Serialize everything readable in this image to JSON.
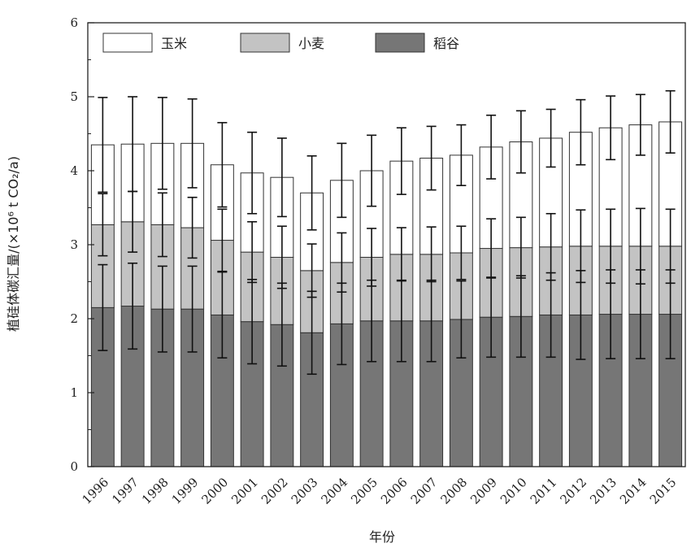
{
  "chart_data": {
    "type": "bar",
    "stacked": true,
    "categories": [
      "1996",
      "1997",
      "1998",
      "1999",
      "2000",
      "2001",
      "2002",
      "2003",
      "2004",
      "2005",
      "2006",
      "2007",
      "2008",
      "2009",
      "2010",
      "2011",
      "2012",
      "2013",
      "2014",
      "2015"
    ],
    "series": [
      {
        "name": "稻谷",
        "color": "#767676",
        "values": [
          2.15,
          2.17,
          2.13,
          2.13,
          2.05,
          1.96,
          1.92,
          1.81,
          1.93,
          1.97,
          1.97,
          1.97,
          1.99,
          2.02,
          2.03,
          2.05,
          2.05,
          2.06,
          2.06,
          2.06
        ],
        "error": [
          0.58,
          0.58,
          0.58,
          0.58,
          0.58,
          0.57,
          0.56,
          0.56,
          0.55,
          0.55,
          0.55,
          0.55,
          0.52,
          0.54,
          0.55,
          0.57,
          0.6,
          0.6,
          0.6,
          0.6
        ]
      },
      {
        "name": "小麦",
        "color": "#c3c3c3",
        "values": [
          1.12,
          1.14,
          1.14,
          1.1,
          1.01,
          0.94,
          0.91,
          0.84,
          0.83,
          0.86,
          0.9,
          0.9,
          0.9,
          0.93,
          0.93,
          0.92,
          0.93,
          0.92,
          0.92,
          0.92
        ],
        "error": [
          0.42,
          0.41,
          0.43,
          0.41,
          0.42,
          0.41,
          0.42,
          0.36,
          0.4,
          0.39,
          0.36,
          0.37,
          0.36,
          0.4,
          0.41,
          0.45,
          0.49,
          0.5,
          0.51,
          0.5
        ]
      },
      {
        "name": "玉米",
        "color": "#ffffff",
        "values": [
          1.08,
          1.05,
          1.1,
          1.14,
          1.02,
          1.07,
          1.08,
          1.05,
          1.11,
          1.17,
          1.26,
          1.3,
          1.32,
          1.37,
          1.43,
          1.47,
          1.54,
          1.6,
          1.64,
          1.68
        ],
        "error": [
          0.64,
          0.64,
          0.62,
          0.6,
          0.57,
          0.55,
          0.53,
          0.5,
          0.5,
          0.48,
          0.45,
          0.43,
          0.41,
          0.43,
          0.42,
          0.39,
          0.44,
          0.43,
          0.41,
          0.42
        ]
      }
    ],
    "legend_order": [
      "玉米",
      "小麦",
      "稻谷"
    ],
    "legend_position": "top-left",
    "xlabel": "年份",
    "ylabel": "植硅体碳汇量/(×10⁶ t CO₂/a)",
    "ylim": [
      0,
      6
    ],
    "yticks": [
      0,
      1,
      2,
      3,
      4,
      5,
      6
    ],
    "grid": false
  }
}
